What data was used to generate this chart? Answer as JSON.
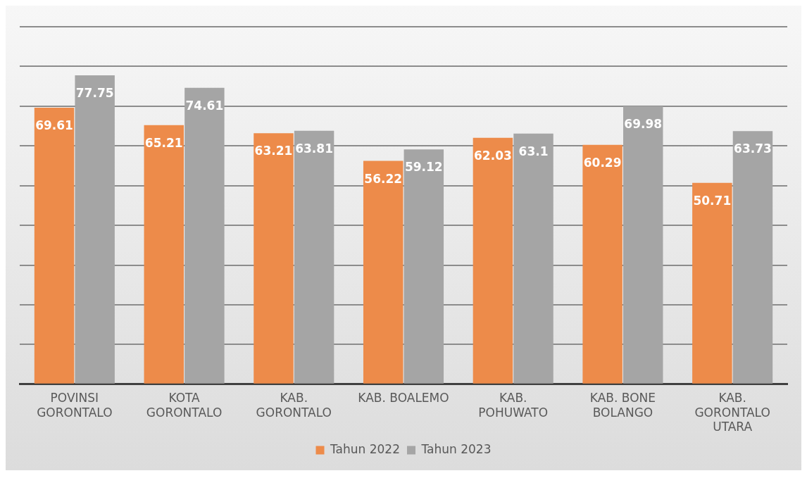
{
  "chart_data": {
    "type": "bar",
    "categories": [
      "POVINSI GORONTALO",
      "KOTA GORONTALO",
      "KAB. GORONTALO",
      "KAB. BOALEMO",
      "KAB. POHUWATO",
      "KAB. BONE BOLANGO",
      "KAB. GORONTALO UTARA"
    ],
    "series": [
      {
        "name": "Tahun 2022",
        "color": "#ed8b4a",
        "values": [
          69.61,
          65.21,
          63.21,
          56.22,
          62.03,
          60.29,
          50.71
        ]
      },
      {
        "name": "Tahun 2023",
        "color": "#a5a5a5",
        "values": [
          77.75,
          74.61,
          63.81,
          59.12,
          63.1,
          69.98,
          63.73
        ]
      }
    ],
    "ylim": [
      0,
      90
    ],
    "yticks": [
      {
        "value": 0,
        "label": null
      },
      {
        "value": 10,
        "label": null
      },
      {
        "value": 20,
        "label": null
      },
      {
        "value": 30,
        "label": null
      },
      {
        "value": 40,
        "label": null
      },
      {
        "value": 50,
        "label": null
      },
      {
        "value": 60,
        "label": null
      },
      {
        "value": 70,
        "label": null
      },
      {
        "value": 80,
        "label": null
      },
      {
        "value": 90,
        "label": null
      }
    ],
    "tick_labels": "x",
    "grid": "y",
    "legend": "bottom",
    "data_labels": true
  }
}
